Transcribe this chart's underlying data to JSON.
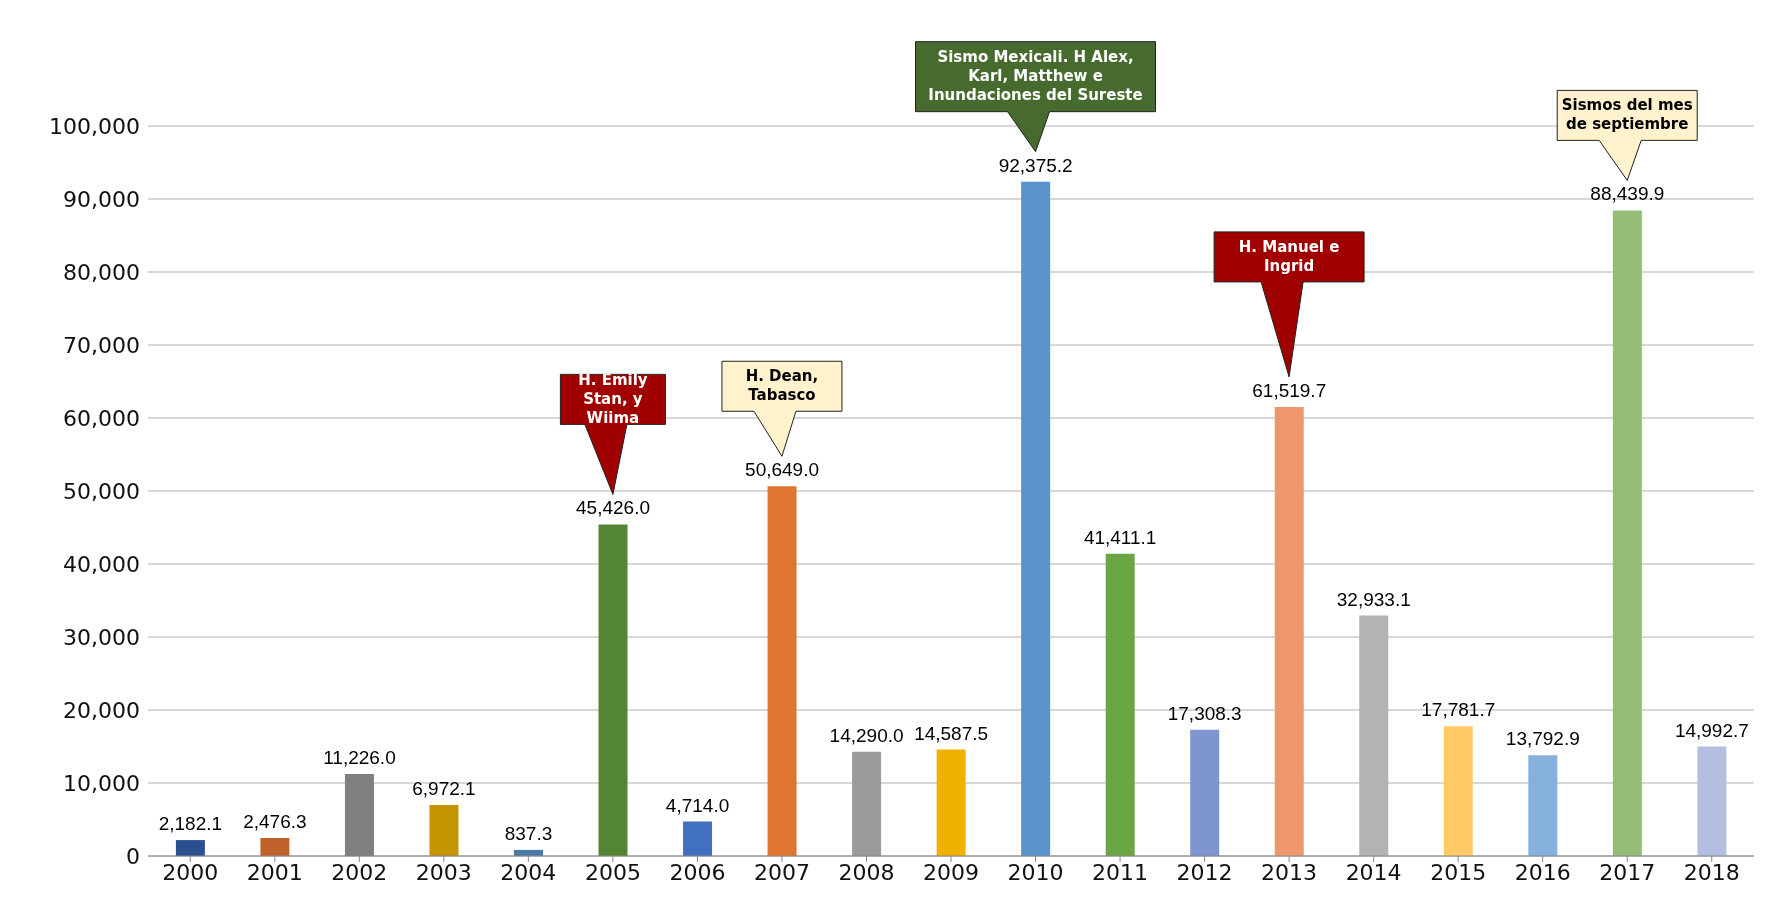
{
  "chart_data": {
    "type": "bar",
    "categories": [
      "2000",
      "2001",
      "2002",
      "2003",
      "2004",
      "2005",
      "2006",
      "2007",
      "2008",
      "2009",
      "2010",
      "2011",
      "2012",
      "2013",
      "2014",
      "2015",
      "2016",
      "2017",
      "2018"
    ],
    "values": [
      2182.1,
      2476.3,
      11226.0,
      6972.1,
      837.3,
      45426.0,
      4714.0,
      50649.0,
      14290.0,
      14587.5,
      92375.2,
      41411.1,
      17308.3,
      61519.7,
      32933.1,
      17781.7,
      13792.9,
      88439.9,
      14992.7
    ],
    "value_labels": [
      "2,182.1",
      "2,476.3",
      "11,226.0",
      "6,972.1",
      "837.3",
      "45,426.0",
      "4,714.0",
      "50,649.0",
      "14,290.0",
      "14,587.5",
      "92,375.2",
      "41,411.1",
      "17,308.3",
      "61,519.7",
      "32,933.1",
      "17,781.7",
      "13,792.9",
      "88,439.9",
      "14,992.7"
    ],
    "colors": [
      "#2b4f8f",
      "#c0622c",
      "#808080",
      "#c49500",
      "#4a79a6",
      "#548535",
      "#4270c0",
      "#df752e",
      "#9b9b9b",
      "#f0b200",
      "#5893c9",
      "#6aa544",
      "#7f95d2",
      "#f0966c",
      "#b3b3b3",
      "#ffca66",
      "#86b1dd",
      "#93bd77",
      "#b3bfe1"
    ],
    "ylim": [
      0,
      100000
    ],
    "yticks": [
      {
        "value": 0,
        "label": "0"
      },
      {
        "value": 10000,
        "label": "10,000"
      },
      {
        "value": 20000,
        "label": "20,000"
      },
      {
        "value": 30000,
        "label": "30,000"
      },
      {
        "value": 40000,
        "label": "40,000"
      },
      {
        "value": 50000,
        "label": "50,000"
      },
      {
        "value": 60000,
        "label": "60,000"
      },
      {
        "value": 70000,
        "label": "70,000"
      },
      {
        "value": 80000,
        "label": "80,000"
      },
      {
        "value": 90000,
        "label": "90,000"
      },
      {
        "value": 100000,
        "label": "100,000"
      }
    ],
    "grid": "y",
    "annotations": [
      "H. Emily Stan, y Wiima",
      "H. Dean, Tabasco",
      "Sismo Mexicali. H Alex, Karl, Matthew e Inundaciones del Sureste",
      "H. Manuel e Ingrid",
      "Sismos del mes de septiembre"
    ]
  }
}
